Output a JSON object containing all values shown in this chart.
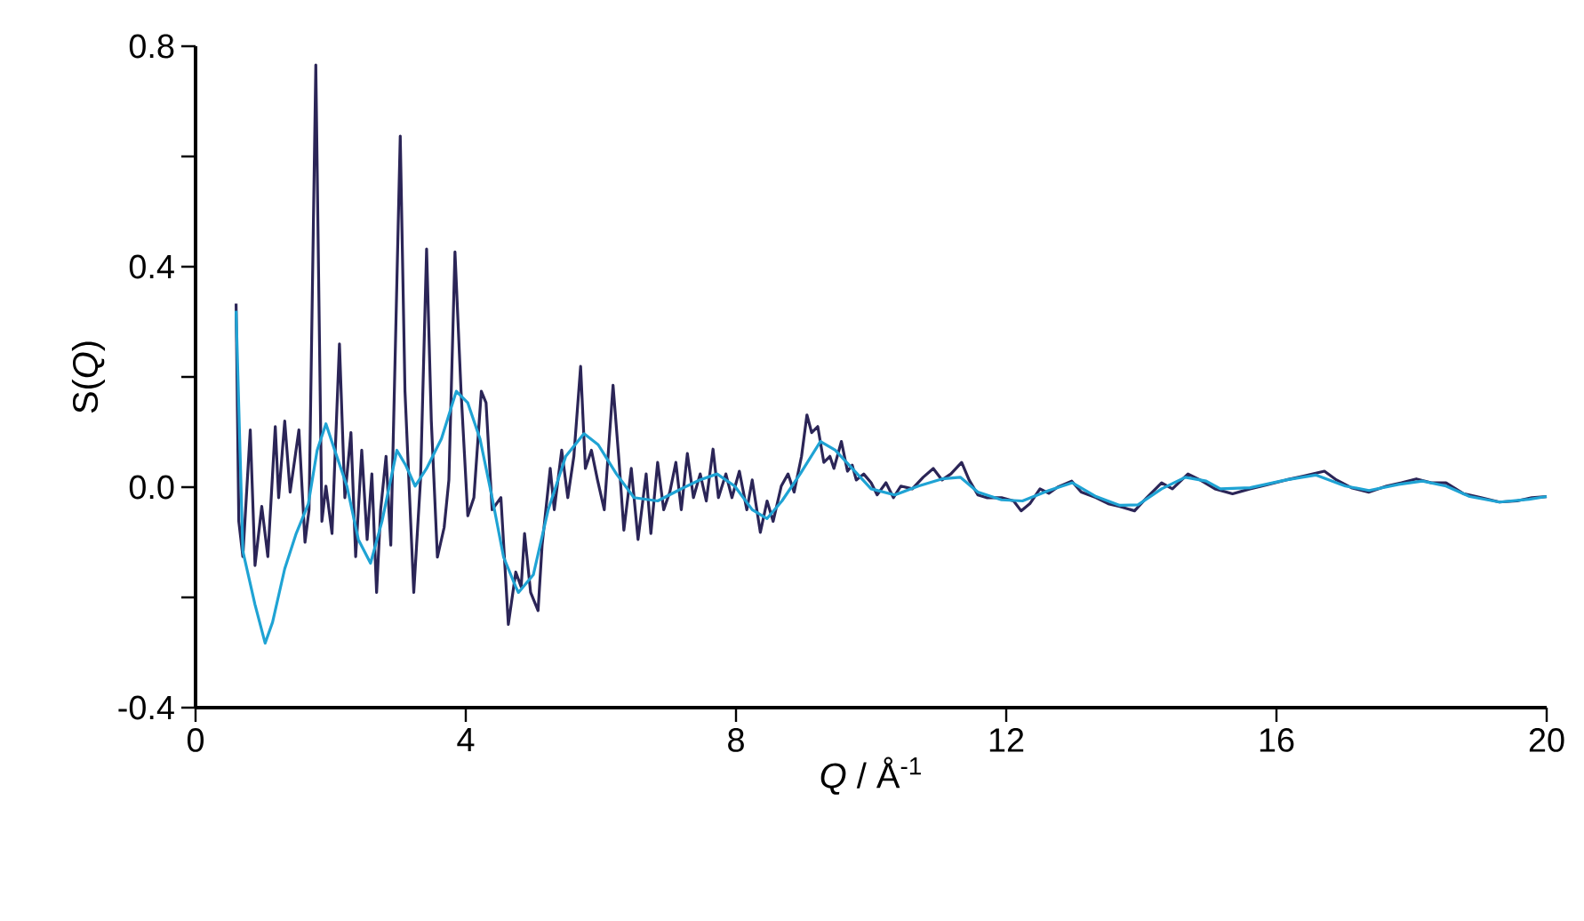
{
  "chart_data": {
    "type": "line",
    "xlabel": "*Q* / Å$^{-1}$",
    "ylabel": "S(*Q*)",
    "xlim": [
      0,
      20
    ],
    "ylim": [
      -0.4,
      0.8
    ],
    "xticks": [
      0,
      4,
      8,
      12,
      16,
      20
    ],
    "yticks": [
      {
        "value": -0.4,
        "label": "-0.4"
      },
      {
        "value": -0.2,
        "label": null
      },
      {
        "value": 0,
        "label": "0.0"
      },
      {
        "value": 0.2,
        "label": null
      },
      {
        "value": 0.4,
        "label": "0.4"
      },
      {
        "value": 0.6,
        "label": null
      },
      {
        "value": 0.8,
        "label": "0.8"
      }
    ],
    "series": [
      {
        "color": "#2b2557",
        "x": [
          0.6,
          0.64,
          0.7,
          0.81,
          0.88,
          0.98,
          1.07,
          1.18,
          1.23,
          1.32,
          1.4,
          1.53,
          1.62,
          1.68,
          1.78,
          1.87,
          1.93,
          2.02,
          2.13,
          2.21,
          2.3,
          2.37,
          2.46,
          2.54,
          2.61,
          2.68,
          2.74,
          2.82,
          2.89,
          3.03,
          3.1,
          3.23,
          3.33,
          3.42,
          3.49,
          3.58,
          3.68,
          3.75,
          3.84,
          3.93,
          4.03,
          4.12,
          4.23,
          4.3,
          4.39,
          4.52,
          4.63,
          4.74,
          4.82,
          4.87,
          4.96,
          5.07,
          5.13,
          5.25,
          5.31,
          5.42,
          5.51,
          5.6,
          5.7,
          5.77,
          5.86,
          5.95,
          6.05,
          6.18,
          6.27,
          6.34,
          6.45,
          6.55,
          6.67,
          6.74,
          6.84,
          6.93,
          7.02,
          7.11,
          7.19,
          7.28,
          7.37,
          7.47,
          7.56,
          7.66,
          7.74,
          7.85,
          7.94,
          8.05,
          8.16,
          8.24,
          8.36,
          8.46,
          8.55,
          8.67,
          8.77,
          8.86,
          8.97,
          9.05,
          9.12,
          9.21,
          9.3,
          9.39,
          9.45,
          9.56,
          9.65,
          9.72,
          9.78,
          9.89,
          10.0,
          10.09,
          10.22,
          10.33,
          10.44,
          10.61,
          10.77,
          10.92,
          11.05,
          11.18,
          11.34,
          11.45,
          11.58,
          11.71,
          11.93,
          12.11,
          12.22,
          12.35,
          12.5,
          12.63,
          12.76,
          12.97,
          13.11,
          13.33,
          13.51,
          13.68,
          13.9,
          14.08,
          14.3,
          14.46,
          14.69,
          14.87,
          15.09,
          15.35,
          15.61,
          15.88,
          16.14,
          16.4,
          16.71,
          16.89,
          17.11,
          17.37,
          17.63,
          17.85,
          18.07,
          18.29,
          18.51,
          18.77,
          19.03,
          19.3,
          19.56,
          19.78,
          20.0
        ],
        "values": [
          0.333,
          -0.062,
          -0.126,
          0.104,
          -0.142,
          -0.035,
          -0.126,
          0.11,
          -0.019,
          0.12,
          -0.009,
          0.104,
          -0.1,
          -0.041,
          0.766,
          -0.062,
          0.002,
          -0.084,
          0.26,
          -0.019,
          0.099,
          -0.126,
          0.067,
          -0.095,
          0.024,
          -0.191,
          -0.041,
          0.056,
          -0.105,
          0.637,
          0.174,
          -0.191,
          0.013,
          0.432,
          0.12,
          -0.127,
          -0.073,
          0.013,
          0.427,
          0.174,
          -0.052,
          -0.019,
          0.174,
          0.153,
          -0.041,
          -0.019,
          -0.249,
          -0.154,
          -0.181,
          -0.084,
          -0.191,
          -0.224,
          -0.105,
          0.034,
          -0.041,
          0.067,
          -0.019,
          0.056,
          0.219,
          0.034,
          0.067,
          0.013,
          -0.041,
          0.185,
          0.045,
          -0.078,
          0.034,
          -0.095,
          0.024,
          -0.084,
          0.045,
          -0.041,
          -0.009,
          0.045,
          -0.041,
          0.061,
          -0.019,
          0.024,
          -0.025,
          0.069,
          -0.019,
          0.024,
          -0.019,
          0.029,
          -0.041,
          0.013,
          -0.082,
          -0.025,
          -0.062,
          0.002,
          0.024,
          -0.009,
          0.056,
          0.131,
          0.099,
          0.11,
          0.045,
          0.056,
          0.034,
          0.083,
          0.029,
          0.04,
          0.013,
          0.024,
          0.008,
          -0.014,
          0.008,
          -0.019,
          0.002,
          -0.003,
          0.018,
          0.034,
          0.013,
          0.024,
          0.045,
          0.013,
          -0.014,
          -0.019,
          -0.019,
          -0.025,
          -0.043,
          -0.03,
          -0.003,
          -0.011,
          0.0,
          0.011,
          -0.009,
          -0.019,
          -0.03,
          -0.035,
          -0.043,
          -0.019,
          0.008,
          -0.003,
          0.024,
          0.013,
          -0.003,
          -0.012,
          -0.003,
          0.005,
          0.013,
          0.02,
          0.029,
          0.013,
          -0.001,
          -0.009,
          0.002,
          0.008,
          0.015,
          0.008,
          0.008,
          -0.012,
          -0.019,
          -0.027,
          -0.025,
          -0.019,
          -0.017
        ]
      },
      {
        "color": "#1fa3d4",
        "x": [
          0.6,
          0.7,
          0.88,
          1.03,
          1.14,
          1.32,
          1.49,
          1.67,
          1.8,
          1.93,
          2.06,
          2.24,
          2.41,
          2.59,
          2.76,
          2.98,
          3.11,
          3.25,
          3.42,
          3.64,
          3.86,
          4.03,
          4.21,
          4.39,
          4.56,
          4.74,
          4.78,
          5.0,
          5.22,
          5.48,
          5.75,
          5.96,
          6.23,
          6.49,
          6.84,
          7.19,
          7.46,
          7.72,
          7.98,
          8.24,
          8.46,
          8.68,
          8.95,
          9.25,
          9.47,
          9.72,
          10.0,
          10.35,
          10.7,
          11.05,
          11.32,
          11.58,
          11.93,
          12.24,
          12.63,
          12.98,
          13.33,
          13.68,
          13.95,
          14.3,
          14.65,
          14.96,
          15.17,
          15.61,
          16.14,
          16.58,
          17.02,
          17.37,
          17.81,
          18.16,
          18.51,
          18.86,
          19.3,
          19.74,
          20.0
        ],
        "values": [
          0.32,
          -0.116,
          -0.213,
          -0.283,
          -0.245,
          -0.148,
          -0.084,
          -0.03,
          0.067,
          0.115,
          0.067,
          0.002,
          -0.095,
          -0.138,
          -0.062,
          0.067,
          0.04,
          0.002,
          0.034,
          0.088,
          0.174,
          0.153,
          0.088,
          -0.019,
          -0.127,
          -0.181,
          -0.191,
          -0.159,
          -0.041,
          0.056,
          0.097,
          0.077,
          0.024,
          -0.019,
          -0.025,
          -0.003,
          0.013,
          0.024,
          0.002,
          -0.041,
          -0.057,
          -0.025,
          0.024,
          0.083,
          0.067,
          0.034,
          -0.003,
          -0.014,
          0.002,
          0.015,
          0.018,
          -0.009,
          -0.023,
          -0.025,
          -0.006,
          0.008,
          -0.017,
          -0.033,
          -0.032,
          -0.003,
          0.018,
          0.011,
          -0.003,
          -0.001,
          0.013,
          0.022,
          0.002,
          -0.006,
          0.005,
          0.011,
          0.002,
          -0.017,
          -0.027,
          -0.022,
          -0.017
        ]
      }
    ]
  }
}
